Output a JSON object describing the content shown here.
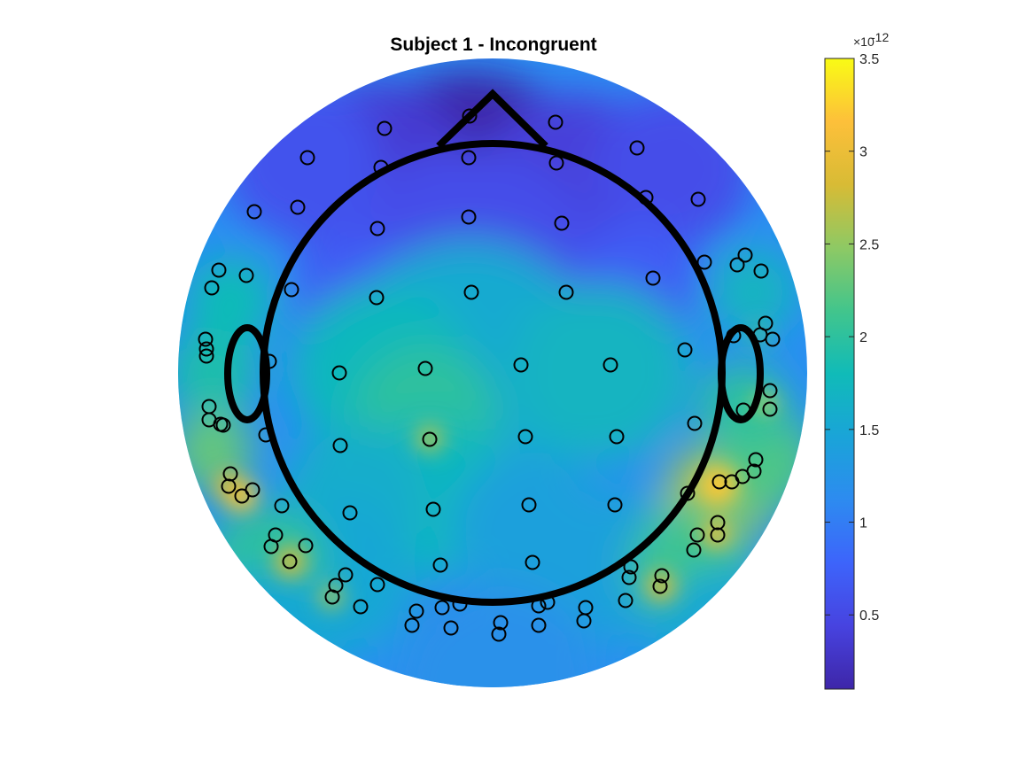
{
  "chart_data": {
    "type": "heatmap",
    "title": "Subject 1 - Incongruent",
    "colorbar": {
      "multiplier": "×10",
      "exponent": "-12",
      "range": [
        0.1,
        3.5
      ],
      "ticks": [
        0.5,
        1,
        1.5,
        2,
        2.5,
        3,
        3.5
      ],
      "tick_labels": [
        "0.5",
        "1",
        "1.5",
        "2",
        "2.5",
        "3",
        "3.5"
      ],
      "colormap": "parula",
      "position": "right"
    },
    "colors": {
      "head_outline": "#000000",
      "electrode_marker": "#000000",
      "background": "#ffffff",
      "colormap_stops": [
        "#3e26a8",
        "#4743e0",
        "#3d64fb",
        "#2d8bf0",
        "#1aa4d8",
        "#10bbb8",
        "#42c58c",
        "#8ec964",
        "#d8bb35",
        "#fdc03a",
        "#f9fb15"
      ]
    },
    "electrodes_symbol": "open-circle",
    "grid": false
  }
}
